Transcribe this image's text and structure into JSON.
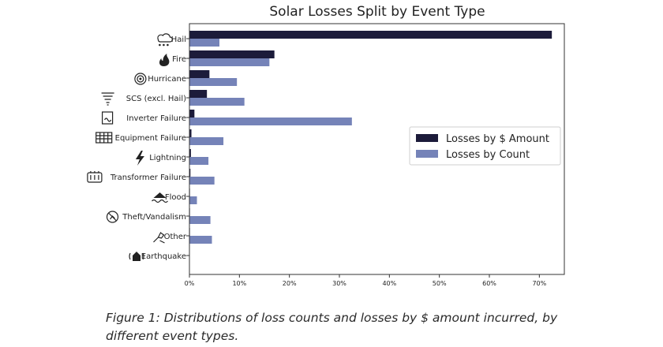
{
  "chart_data": {
    "type": "bar",
    "orientation": "horizontal",
    "title": "Solar Losses Split by Event Type",
    "categories": [
      "Hail",
      "Fire",
      "Hurricane",
      "SCS (excl. Hail)",
      "Inverter Failure",
      "Equipment Failure",
      "Lightning",
      "Transformer Failure",
      "Flood",
      "Theft/Vandalism",
      "Other",
      "Earthquake"
    ],
    "icons": [
      "hail-icon",
      "fire-icon",
      "hurricane-icon",
      "tornado-icon",
      "inverter-icon",
      "equipment-icon",
      "lightning-icon",
      "transformer-icon",
      "flood-icon",
      "theft-icon",
      "other-icon",
      "earthquake-icon"
    ],
    "series": [
      {
        "name": "Losses by $ Amount",
        "color": "#1c1b3a",
        "values": [
          72.5,
          17.0,
          4.0,
          3.5,
          1.0,
          0.4,
          0.3,
          0.2,
          0.1,
          0.1,
          0.1,
          0.0
        ]
      },
      {
        "name": "Losses by Count",
        "color": "#7583b8",
        "values": [
          6.0,
          16.0,
          9.5,
          11.0,
          32.5,
          6.8,
          3.8,
          5.0,
          1.5,
          4.2,
          4.5,
          0.0
        ]
      }
    ],
    "xlim": [
      0,
      75
    ],
    "xticks": [
      0,
      10,
      20,
      30,
      40,
      50,
      60,
      70
    ],
    "xtick_labels": [
      "0%",
      "10%",
      "20%",
      "30%",
      "40%",
      "50%",
      "60%",
      "70%"
    ],
    "legend": "right",
    "grid": false
  },
  "caption": {
    "line1": "Figure 1: Distributions of loss counts and losses by $ amount incurred, by",
    "line2": "different event types."
  }
}
